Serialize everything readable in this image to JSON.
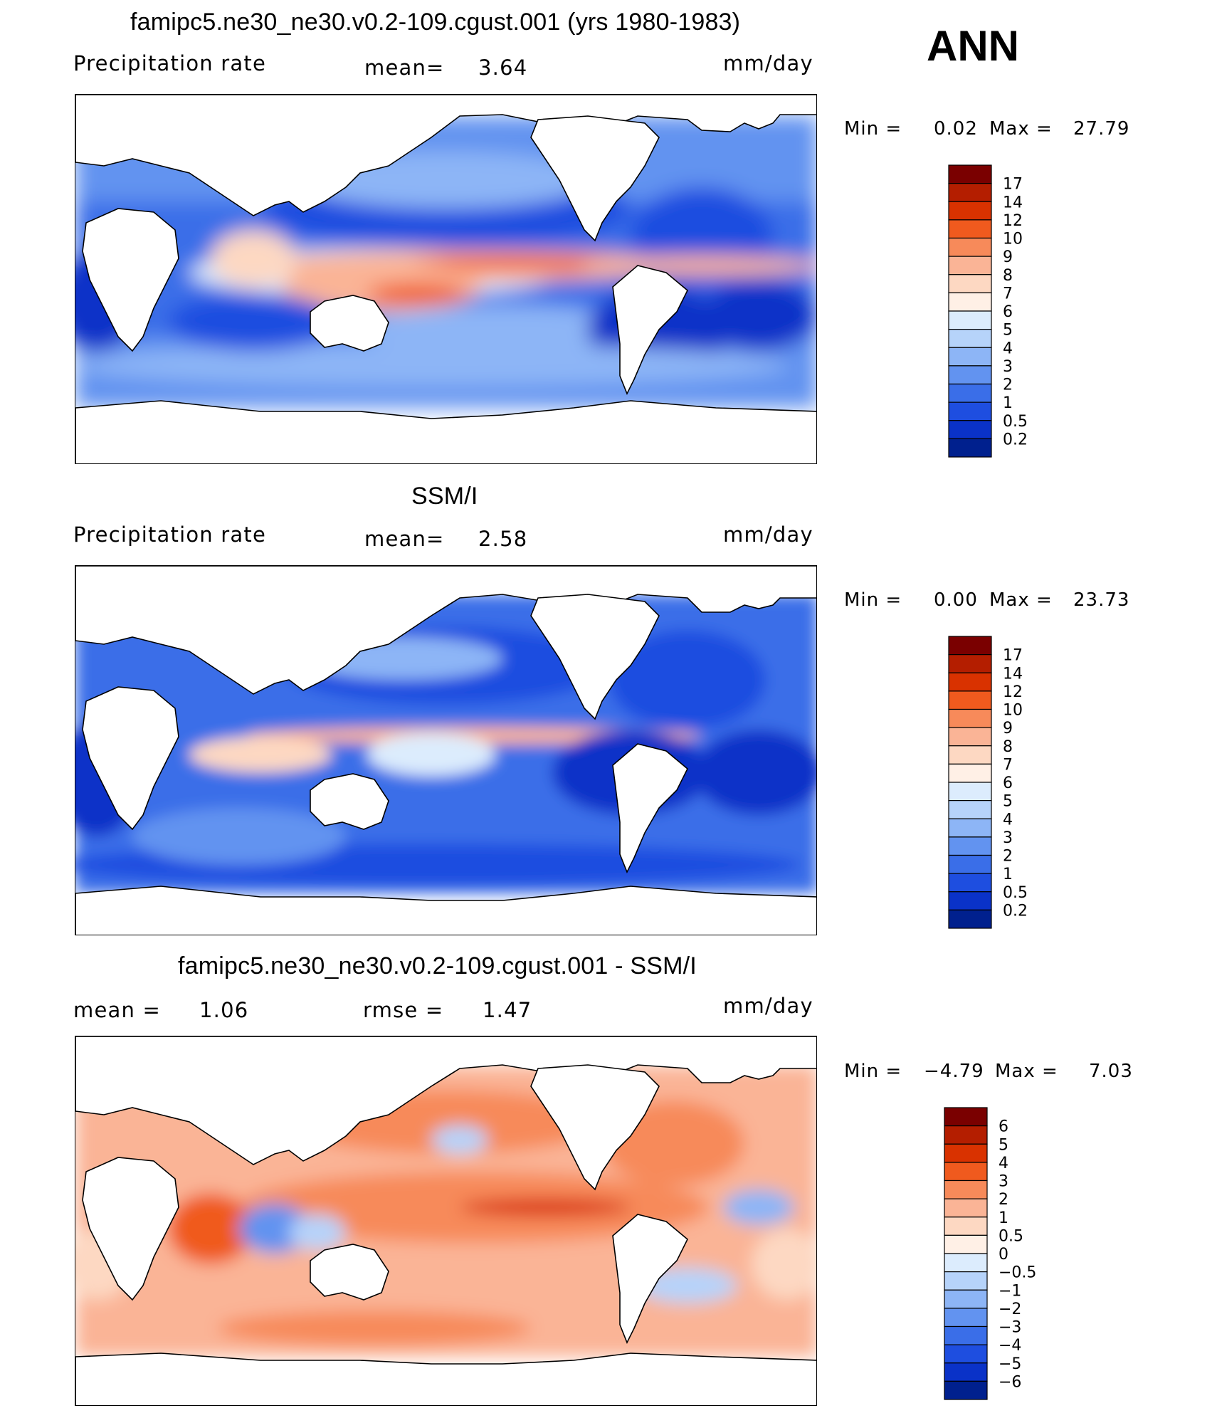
{
  "season": "ANN",
  "chart_data": [
    {
      "type": "heatmap",
      "title": "famipc5.ne30_ne30.v0.2-109.cgust.001 (yrs 1980-1983)",
      "variable": "Precipitation  rate",
      "stat1_label": "mean=",
      "stat1_value": "3.64",
      "units": "mm/day",
      "min_label": "Min  =",
      "min_value": "0.02",
      "max_label": "Max  =",
      "max_value": "27.79",
      "color_levels": [
        "17",
        "14",
        "12",
        "10",
        "9",
        "8",
        "7",
        "6",
        "5",
        "4",
        "3",
        "2",
        "1",
        "0.5",
        "0.2"
      ],
      "colors": [
        "#7a0000",
        "#b41e00",
        "#d93200",
        "#f05a1e",
        "#f78a5a",
        "#fab496",
        "#fdd8c2",
        "#fff0e6",
        "#dcecfd",
        "#b6d3fa",
        "#8db5f6",
        "#6293f0",
        "#3a6ee8",
        "#1e4ee0",
        "#0a32c8",
        "#00208e"
      ]
    },
    {
      "type": "heatmap",
      "title": "SSM/I",
      "variable": "Precipitation  rate",
      "stat1_label": "mean=",
      "stat1_value": "2.58",
      "units": "mm/day",
      "min_label": "Min  =",
      "min_value": "0.00",
      "max_label": "Max  =",
      "max_value": "23.73",
      "color_levels": [
        "17",
        "14",
        "12",
        "10",
        "9",
        "8",
        "7",
        "6",
        "5",
        "4",
        "3",
        "2",
        "1",
        "0.5",
        "0.2"
      ],
      "colors": [
        "#7a0000",
        "#b41e00",
        "#d93200",
        "#f05a1e",
        "#f78a5a",
        "#fab496",
        "#fdd8c2",
        "#fff0e6",
        "#dcecfd",
        "#b6d3fa",
        "#8db5f6",
        "#6293f0",
        "#3a6ee8",
        "#1e4ee0",
        "#0a32c8",
        "#00208e"
      ]
    },
    {
      "type": "heatmap",
      "title": "famipc5.ne30_ne30.v0.2-109.cgust.001 - SSM/I",
      "stat1_label": "mean  =",
      "stat1_value": "1.06",
      "stat2_label": "rmse  =",
      "stat2_value": "1.47",
      "units": "mm/day",
      "min_label": "Min  =",
      "min_value": "−4.79",
      "max_label": "Max  =",
      "max_value": "7.03",
      "color_levels": [
        "6",
        "5",
        "4",
        "3",
        "2",
        "1",
        "0.5",
        "0",
        "−0.5",
        "−1",
        "−2",
        "−3",
        "−4",
        "−5",
        "−6"
      ],
      "colors": [
        "#7a0000",
        "#b41e00",
        "#d93200",
        "#f05a1e",
        "#f78a5a",
        "#fab496",
        "#fdd8c2",
        "#fff0e6",
        "#dcecfd",
        "#b6d3fa",
        "#8db5f6",
        "#6293f0",
        "#3a6ee8",
        "#1e4ee0",
        "#0a32c8",
        "#00208e"
      ]
    }
  ]
}
